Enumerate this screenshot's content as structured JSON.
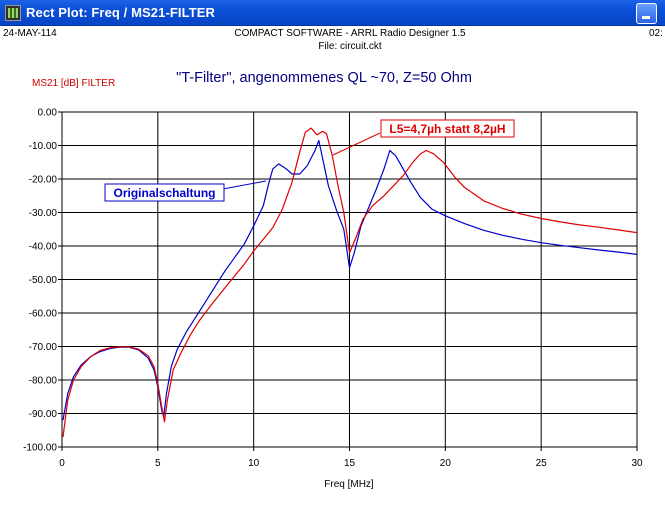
{
  "window": {
    "title": "Rect Plot: Freq / MS21-FILTER"
  },
  "header": {
    "date": "24-MAY-114",
    "software": "COMPACT SOFTWARE - ARRL Radio Designer 1.5",
    "file": "File: circuit.ckt",
    "right_clip": "02:"
  },
  "colors": {
    "series_original": "#0000cc",
    "series_modified": "#dd0000",
    "titlebar": "#0a4fd8"
  },
  "chart_data": {
    "type": "line",
    "title": "\"T-Filter\", angenommenes QL ~70, Z=50 Ohm",
    "ylabel": "MS21 [dB] FILTER",
    "xlabel": "Freq [MHz]",
    "xlim": [
      0,
      30
    ],
    "ylim": [
      -100,
      0
    ],
    "x_ticks": [
      0,
      5,
      10,
      15,
      20,
      25,
      30
    ],
    "y_ticks": [
      0,
      -10,
      -20,
      -30,
      -40,
      -50,
      -60,
      -70,
      -80,
      -90,
      -100
    ],
    "x_tick_labels": [
      "0",
      "5",
      "10",
      "15",
      "20",
      "25",
      "30"
    ],
    "y_tick_labels": [
      "0.00",
      "-10.00",
      "-20.00",
      "-30.00",
      "-40.00",
      "-50.00",
      "-60.00",
      "-70.00",
      "-80.00",
      "-90.00",
      "-100.00"
    ],
    "grid": true,
    "annotations": [
      {
        "text": "Originalschaltung",
        "series": "Originalschaltung"
      },
      {
        "text": "L5=4,7µh statt 8,2µH",
        "series": "L5=4,7µh statt 8,2µH"
      }
    ],
    "series": [
      {
        "name": "Originalschaltung",
        "color": "#0000cc",
        "points": [
          [
            0.05,
            -92
          ],
          [
            0.3,
            -84
          ],
          [
            0.6,
            -79
          ],
          [
            1,
            -75.5
          ],
          [
            1.5,
            -73
          ],
          [
            2,
            -71.5
          ],
          [
            2.5,
            -70.6
          ],
          [
            3,
            -70.2
          ],
          [
            3.5,
            -70.2
          ],
          [
            4,
            -71
          ],
          [
            4.5,
            -73.5
          ],
          [
            4.8,
            -77
          ],
          [
            5,
            -82
          ],
          [
            5.2,
            -89
          ],
          [
            5.3,
            -91
          ],
          [
            5.45,
            -84
          ],
          [
            5.7,
            -76
          ],
          [
            6,
            -71
          ],
          [
            6.5,
            -65.5
          ],
          [
            7,
            -61
          ],
          [
            7.5,
            -56.5
          ],
          [
            8,
            -52
          ],
          [
            8.5,
            -47.5
          ],
          [
            9,
            -43.5
          ],
          [
            9.5,
            -39.5
          ],
          [
            10,
            -34
          ],
          [
            10.5,
            -28
          ],
          [
            10.8,
            -21
          ],
          [
            11,
            -17
          ],
          [
            11.3,
            -15.5
          ],
          [
            11.7,
            -17
          ],
          [
            12,
            -18.5
          ],
          [
            12.4,
            -18.5
          ],
          [
            12.8,
            -16
          ],
          [
            13.2,
            -11.5
          ],
          [
            13.4,
            -8.5
          ],
          [
            13.6,
            -14
          ],
          [
            13.9,
            -22
          ],
          [
            14.3,
            -29
          ],
          [
            14.7,
            -35
          ],
          [
            15,
            -46.5
          ],
          [
            15.25,
            -42
          ],
          [
            15.6,
            -34
          ],
          [
            16,
            -28.5
          ],
          [
            16.4,
            -23
          ],
          [
            16.8,
            -17
          ],
          [
            17.1,
            -11.5
          ],
          [
            17.4,
            -13
          ],
          [
            17.8,
            -17
          ],
          [
            18.2,
            -21
          ],
          [
            18.7,
            -25.5
          ],
          [
            19.3,
            -29
          ],
          [
            20,
            -31
          ],
          [
            21,
            -33.3
          ],
          [
            22,
            -35.3
          ],
          [
            23,
            -36.8
          ],
          [
            24,
            -38
          ],
          [
            25,
            -39
          ],
          [
            26,
            -39.8
          ],
          [
            27,
            -40.5
          ],
          [
            28,
            -41.2
          ],
          [
            29,
            -41.8
          ],
          [
            30,
            -42.5
          ]
        ]
      },
      {
        "name": "L5=4,7µh statt 8,2µH",
        "color": "#dd0000",
        "points": [
          [
            0.05,
            -97
          ],
          [
            0.3,
            -86
          ],
          [
            0.6,
            -80
          ],
          [
            1,
            -76
          ],
          [
            1.5,
            -73
          ],
          [
            2,
            -71.2
          ],
          [
            2.5,
            -70.4
          ],
          [
            3,
            -70.1
          ],
          [
            3.5,
            -70.1
          ],
          [
            4,
            -70.8
          ],
          [
            4.5,
            -72.8
          ],
          [
            4.8,
            -76
          ],
          [
            5,
            -81
          ],
          [
            5.2,
            -88
          ],
          [
            5.35,
            -92.5
          ],
          [
            5.5,
            -86
          ],
          [
            5.8,
            -77
          ],
          [
            6.2,
            -72
          ],
          [
            6.7,
            -66.5
          ],
          [
            7.2,
            -62
          ],
          [
            7.8,
            -57.5
          ],
          [
            8.5,
            -52.5
          ],
          [
            9,
            -49
          ],
          [
            9.5,
            -45.5
          ],
          [
            10,
            -41.5
          ],
          [
            10.5,
            -38
          ],
          [
            11,
            -34.5
          ],
          [
            11.5,
            -29
          ],
          [
            12,
            -21
          ],
          [
            12.4,
            -12
          ],
          [
            12.7,
            -6
          ],
          [
            13,
            -4.8
          ],
          [
            13.3,
            -6.8
          ],
          [
            13.6,
            -5.8
          ],
          [
            13.8,
            -6.5
          ],
          [
            14.1,
            -13
          ],
          [
            14.4,
            -22
          ],
          [
            14.7,
            -30
          ],
          [
            15,
            -42
          ],
          [
            15.3,
            -38
          ],
          [
            15.7,
            -32
          ],
          [
            16.2,
            -28
          ],
          [
            16.8,
            -25
          ],
          [
            17.3,
            -22
          ],
          [
            17.8,
            -19
          ],
          [
            18.3,
            -15
          ],
          [
            18.7,
            -12.5
          ],
          [
            19,
            -11.5
          ],
          [
            19.4,
            -12.5
          ],
          [
            19.9,
            -15
          ],
          [
            20.5,
            -19.5
          ],
          [
            21,
            -22.5
          ],
          [
            22,
            -26.5
          ],
          [
            23,
            -28.8
          ],
          [
            24,
            -30.5
          ],
          [
            25,
            -31.8
          ],
          [
            26,
            -32.8
          ],
          [
            27,
            -33.7
          ],
          [
            28,
            -34.4
          ],
          [
            29,
            -35.2
          ],
          [
            30,
            -36
          ]
        ]
      }
    ]
  }
}
